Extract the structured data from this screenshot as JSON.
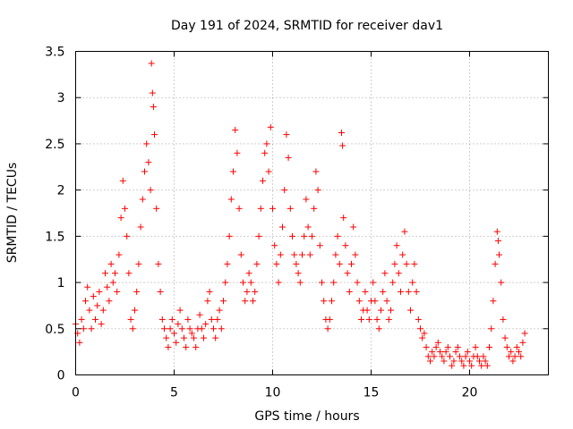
{
  "chart_data": {
    "type": "scatter",
    "title": "Day 191 of 2024, SRMTID for receiver dav1",
    "xlabel": "GPS time / hours",
    "ylabel": "SRMTID / TECUs",
    "xlim": [
      0,
      24
    ],
    "ylim": [
      0,
      3.5
    ],
    "xticks": [
      0,
      5,
      10,
      15,
      20
    ],
    "yticks": [
      0,
      0.5,
      1,
      1.5,
      2,
      2.5,
      3,
      3.5
    ],
    "xtick_labels": [
      "0",
      "5",
      "10",
      "15",
      "20"
    ],
    "ytick_labels": [
      "0",
      "0.5",
      "1",
      "1.5",
      "2",
      "2.5",
      "3",
      "3.5"
    ],
    "grid": true,
    "marker": "+",
    "color": "#ff0000",
    "series": [
      {
        "name": "SRMTID",
        "points": [
          [
            0.0,
            0.55
          ],
          [
            0.1,
            0.45
          ],
          [
            0.2,
            0.35
          ],
          [
            0.3,
            0.6
          ],
          [
            0.4,
            0.5
          ],
          [
            0.5,
            0.8
          ],
          [
            0.6,
            0.95
          ],
          [
            0.7,
            0.7
          ],
          [
            0.8,
            0.5
          ],
          [
            0.9,
            0.85
          ],
          [
            1.0,
            0.6
          ],
          [
            1.1,
            0.75
          ],
          [
            1.2,
            0.9
          ],
          [
            1.3,
            0.55
          ],
          [
            1.4,
            0.7
          ],
          [
            1.5,
            1.1
          ],
          [
            1.6,
            0.95
          ],
          [
            1.7,
            0.8
          ],
          [
            1.8,
            1.2
          ],
          [
            1.9,
            1.0
          ],
          [
            2.0,
            1.1
          ],
          [
            2.1,
            0.9
          ],
          [
            2.2,
            1.3
          ],
          [
            2.3,
            1.7
          ],
          [
            2.4,
            2.1
          ],
          [
            2.5,
            1.8
          ],
          [
            2.6,
            1.5
          ],
          [
            2.7,
            1.1
          ],
          [
            2.8,
            0.6
          ],
          [
            2.9,
            0.5
          ],
          [
            3.0,
            0.7
          ],
          [
            3.1,
            0.9
          ],
          [
            3.2,
            1.2
          ],
          [
            3.3,
            1.6
          ],
          [
            3.4,
            1.9
          ],
          [
            3.5,
            2.2
          ],
          [
            3.6,
            2.5
          ],
          [
            3.7,
            2.3
          ],
          [
            3.8,
            2.0
          ],
          [
            3.85,
            3.37
          ],
          [
            3.9,
            3.05
          ],
          [
            3.95,
            2.9
          ],
          [
            4.0,
            2.6
          ],
          [
            4.1,
            1.8
          ],
          [
            4.2,
            1.2
          ],
          [
            4.3,
            0.9
          ],
          [
            4.4,
            0.6
          ],
          [
            4.5,
            0.5
          ],
          [
            4.6,
            0.4
          ],
          [
            4.7,
            0.3
          ],
          [
            4.8,
            0.5
          ],
          [
            4.9,
            0.6
          ],
          [
            5.0,
            0.45
          ],
          [
            5.1,
            0.35
          ],
          [
            5.2,
            0.55
          ],
          [
            5.3,
            0.7
          ],
          [
            5.4,
            0.5
          ],
          [
            5.5,
            0.4
          ],
          [
            5.6,
            0.3
          ],
          [
            5.7,
            0.6
          ],
          [
            5.8,
            0.5
          ],
          [
            5.9,
            0.45
          ],
          [
            6.0,
            0.4
          ],
          [
            6.1,
            0.3
          ],
          [
            6.2,
            0.5
          ],
          [
            6.3,
            0.65
          ],
          [
            6.4,
            0.5
          ],
          [
            6.5,
            0.4
          ],
          [
            6.6,
            0.55
          ],
          [
            6.7,
            0.8
          ],
          [
            6.8,
            0.9
          ],
          [
            6.9,
            0.6
          ],
          [
            7.0,
            0.5
          ],
          [
            7.1,
            0.4
          ],
          [
            7.2,
            0.6
          ],
          [
            7.3,
            0.7
          ],
          [
            7.4,
            0.5
          ],
          [
            7.5,
            0.8
          ],
          [
            7.6,
            1.0
          ],
          [
            7.7,
            1.2
          ],
          [
            7.8,
            1.5
          ],
          [
            7.9,
            1.9
          ],
          [
            8.0,
            2.2
          ],
          [
            8.1,
            2.65
          ],
          [
            8.2,
            2.4
          ],
          [
            8.3,
            1.8
          ],
          [
            8.4,
            1.3
          ],
          [
            8.5,
            1.0
          ],
          [
            8.6,
            0.8
          ],
          [
            8.7,
            0.9
          ],
          [
            8.8,
            1.1
          ],
          [
            8.9,
            1.0
          ],
          [
            9.0,
            0.8
          ],
          [
            9.1,
            0.9
          ],
          [
            9.2,
            1.2
          ],
          [
            9.3,
            1.5
          ],
          [
            9.4,
            1.8
          ],
          [
            9.5,
            2.1
          ],
          [
            9.6,
            2.4
          ],
          [
            9.7,
            2.5
          ],
          [
            9.8,
            2.2
          ],
          [
            9.9,
            2.68
          ],
          [
            10.0,
            1.8
          ],
          [
            10.1,
            1.4
          ],
          [
            10.2,
            1.2
          ],
          [
            10.3,
            1.0
          ],
          [
            10.4,
            1.3
          ],
          [
            10.5,
            1.6
          ],
          [
            10.6,
            2.0
          ],
          [
            10.7,
            2.6
          ],
          [
            10.8,
            2.35
          ],
          [
            10.9,
            1.8
          ],
          [
            11.0,
            1.5
          ],
          [
            11.1,
            1.3
          ],
          [
            11.2,
            1.2
          ],
          [
            11.3,
            1.1
          ],
          [
            11.4,
            1.0
          ],
          [
            11.5,
            1.3
          ],
          [
            11.6,
            1.5
          ],
          [
            11.7,
            1.9
          ],
          [
            11.8,
            1.6
          ],
          [
            11.9,
            1.3
          ],
          [
            12.0,
            1.5
          ],
          [
            12.1,
            1.8
          ],
          [
            12.2,
            2.2
          ],
          [
            12.3,
            2.0
          ],
          [
            12.4,
            1.4
          ],
          [
            12.5,
            1.0
          ],
          [
            12.6,
            0.8
          ],
          [
            12.7,
            0.6
          ],
          [
            12.8,
            0.5
          ],
          [
            12.9,
            0.6
          ],
          [
            13.0,
            0.8
          ],
          [
            13.1,
            1.0
          ],
          [
            13.2,
            1.3
          ],
          [
            13.3,
            1.5
          ],
          [
            13.4,
            1.2
          ],
          [
            13.5,
            2.62
          ],
          [
            13.55,
            2.48
          ],
          [
            13.6,
            1.7
          ],
          [
            13.7,
            1.4
          ],
          [
            13.8,
            1.1
          ],
          [
            13.9,
            0.9
          ],
          [
            14.0,
            1.2
          ],
          [
            14.1,
            1.6
          ],
          [
            14.2,
            1.3
          ],
          [
            14.3,
            1.0
          ],
          [
            14.4,
            0.8
          ],
          [
            14.5,
            0.6
          ],
          [
            14.6,
            0.7
          ],
          [
            14.7,
            0.9
          ],
          [
            14.8,
            0.7
          ],
          [
            14.9,
            0.6
          ],
          [
            15.0,
            0.8
          ],
          [
            15.1,
            1.0
          ],
          [
            15.2,
            0.8
          ],
          [
            15.3,
            0.6
          ],
          [
            15.4,
            0.5
          ],
          [
            15.5,
            0.7
          ],
          [
            15.6,
            0.9
          ],
          [
            15.7,
            1.1
          ],
          [
            15.8,
            0.8
          ],
          [
            15.9,
            0.6
          ],
          [
            16.0,
            0.7
          ],
          [
            16.1,
            1.0
          ],
          [
            16.2,
            1.2
          ],
          [
            16.3,
            1.4
          ],
          [
            16.4,
            1.1
          ],
          [
            16.5,
            0.9
          ],
          [
            16.6,
            1.3
          ],
          [
            16.7,
            1.55
          ],
          [
            16.8,
            1.2
          ],
          [
            16.9,
            0.9
          ],
          [
            17.0,
            0.7
          ],
          [
            17.1,
            1.0
          ],
          [
            17.2,
            1.2
          ],
          [
            17.3,
            0.9
          ],
          [
            17.4,
            0.6
          ],
          [
            17.5,
            0.5
          ],
          [
            17.6,
            0.4
          ],
          [
            17.7,
            0.45
          ],
          [
            17.8,
            0.3
          ],
          [
            17.9,
            0.2
          ],
          [
            18.0,
            0.15
          ],
          [
            18.1,
            0.25
          ],
          [
            18.2,
            0.2
          ],
          [
            18.3,
            0.3
          ],
          [
            18.4,
            0.35
          ],
          [
            18.5,
            0.25
          ],
          [
            18.6,
            0.2
          ],
          [
            18.7,
            0.15
          ],
          [
            18.8,
            0.25
          ],
          [
            18.9,
            0.3
          ],
          [
            19.0,
            0.2
          ],
          [
            19.1,
            0.1
          ],
          [
            19.2,
            0.15
          ],
          [
            19.3,
            0.25
          ],
          [
            19.4,
            0.3
          ],
          [
            19.5,
            0.2
          ],
          [
            19.6,
            0.15
          ],
          [
            19.7,
            0.1
          ],
          [
            19.8,
            0.2
          ],
          [
            19.9,
            0.25
          ],
          [
            20.0,
            0.15
          ],
          [
            20.1,
            0.1
          ],
          [
            20.2,
            0.2
          ],
          [
            20.3,
            0.3
          ],
          [
            20.4,
            0.2
          ],
          [
            20.5,
            0.15
          ],
          [
            20.6,
            0.1
          ],
          [
            20.7,
            0.2
          ],
          [
            20.8,
            0.15
          ],
          [
            20.9,
            0.1
          ],
          [
            21.0,
            0.3
          ],
          [
            21.1,
            0.5
          ],
          [
            21.2,
            0.8
          ],
          [
            21.3,
            1.2
          ],
          [
            21.4,
            1.55
          ],
          [
            21.45,
            1.45
          ],
          [
            21.5,
            1.3
          ],
          [
            21.6,
            1.0
          ],
          [
            21.7,
            0.6
          ],
          [
            21.8,
            0.4
          ],
          [
            21.9,
            0.3
          ],
          [
            22.0,
            0.2
          ],
          [
            22.1,
            0.25
          ],
          [
            22.2,
            0.15
          ],
          [
            22.3,
            0.2
          ],
          [
            22.4,
            0.3
          ],
          [
            22.5,
            0.25
          ],
          [
            22.6,
            0.2
          ],
          [
            22.7,
            0.35
          ],
          [
            22.8,
            0.45
          ]
        ]
      }
    ]
  }
}
